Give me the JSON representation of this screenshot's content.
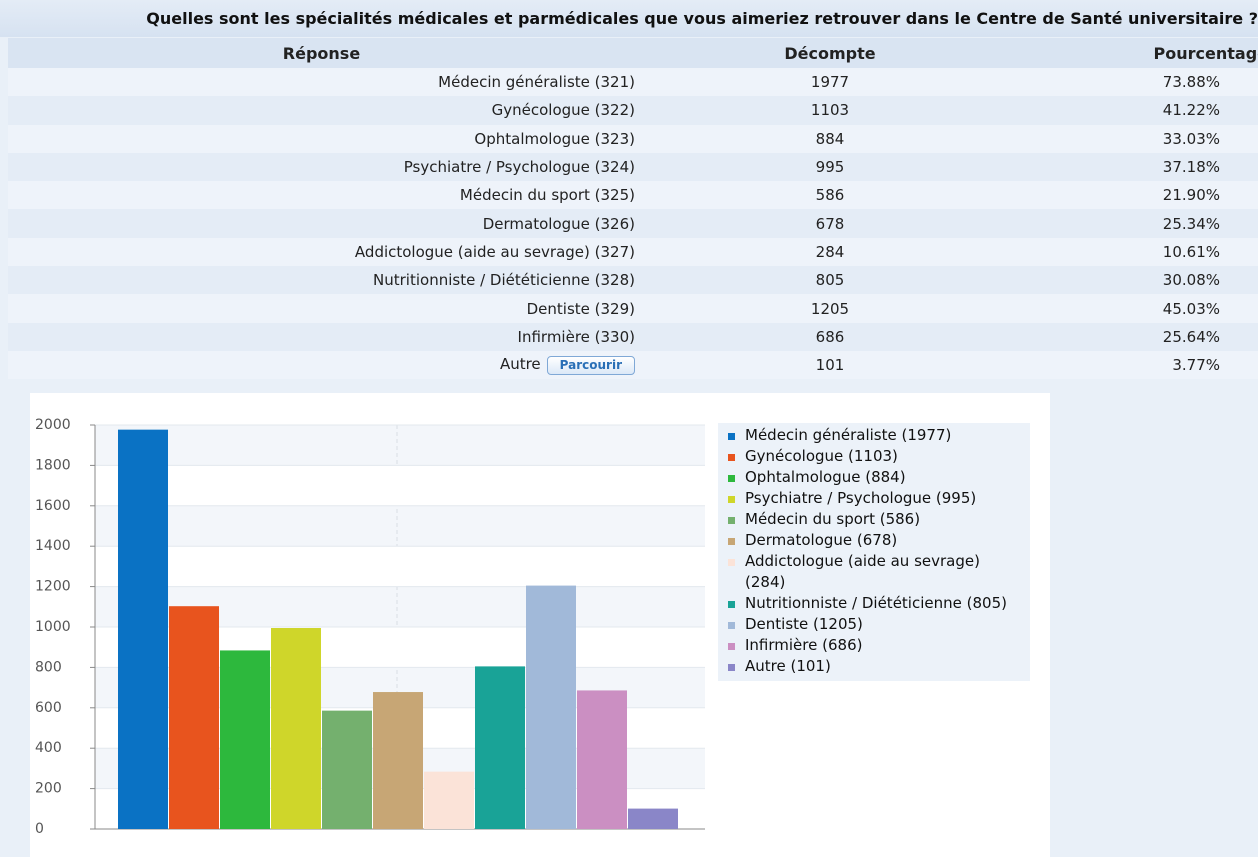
{
  "table": {
    "title": "Quelles sont les spécialités médicales et parmédicales que vous aimeriez retrouver dans le Centre de Santé universitaire ?",
    "columns": [
      "Réponse",
      "Décompte",
      "Pourcentage"
    ],
    "rows": [
      [
        "Médecin généraliste (321)",
        "1977",
        "73.88%"
      ],
      [
        "Gynécologue (322)",
        "1103",
        "41.22%"
      ],
      [
        "Ophtalmologue (323)",
        "884",
        "33.03%"
      ],
      [
        "Psychiatre / Psychologue (324)",
        "995",
        "37.18%"
      ],
      [
        "Médecin du sport (325)",
        "586",
        "21.90%"
      ],
      [
        "Dermatologue (326)",
        "678",
        "25.34%"
      ],
      [
        "Addictologue (aide au sevrage) (327)",
        "284",
        "10.61%"
      ],
      [
        "Nutritionniste / Diététicienne (328)",
        "805",
        "30.08%"
      ],
      [
        "Dentiste (329)",
        "1205",
        "45.03%"
      ],
      [
        "Infirmière (330)",
        "686",
        "25.64%"
      ],
      [
        "Autre",
        "101",
        "3.77%"
      ]
    ],
    "button": "Parcourir"
  },
  "chart_data": {
    "type": "bar",
    "series": [
      {
        "name": "Médecin généraliste (1977)",
        "color": "#0a72c4",
        "values": [
          1977
        ]
      },
      {
        "name": "Gynécologue (1103)",
        "color": "#e8541e",
        "values": [
          1103
        ]
      },
      {
        "name": "Ophtalmologue (884)",
        "color": "#2db83d",
        "values": [
          884
        ]
      },
      {
        "name": "Psychiatre / Psychologue (995)",
        "color": "#cfd62a",
        "values": [
          995
        ]
      },
      {
        "name": "Médecin du sport (586)",
        "color": "#74b06e",
        "values": [
          586
        ]
      },
      {
        "name": "Dermatologue (678)",
        "color": "#c7a675",
        "values": [
          678
        ]
      },
      {
        "name": "Addictologue (aide au sevrage) (284)",
        "color": "#fbe3d8",
        "values": [
          284
        ]
      },
      {
        "name": "Nutritionniste / Diététicienne (805)",
        "color": "#19a397",
        "values": [
          805
        ]
      },
      {
        "name": "Dentiste (1205)",
        "color": "#a1b9d9",
        "values": [
          1205
        ]
      },
      {
        "name": "Infirmière (686)",
        "color": "#cb8fc2",
        "values": [
          686
        ]
      },
      {
        "name": "Autre (101)",
        "color": "#8a86c8",
        "values": [
          101
        ]
      }
    ],
    "ylim": [
      0,
      2000
    ],
    "yticks": [
      0,
      200,
      400,
      600,
      800,
      1000,
      1200,
      1400,
      1600,
      1800,
      2000
    ],
    "grid": true
  }
}
